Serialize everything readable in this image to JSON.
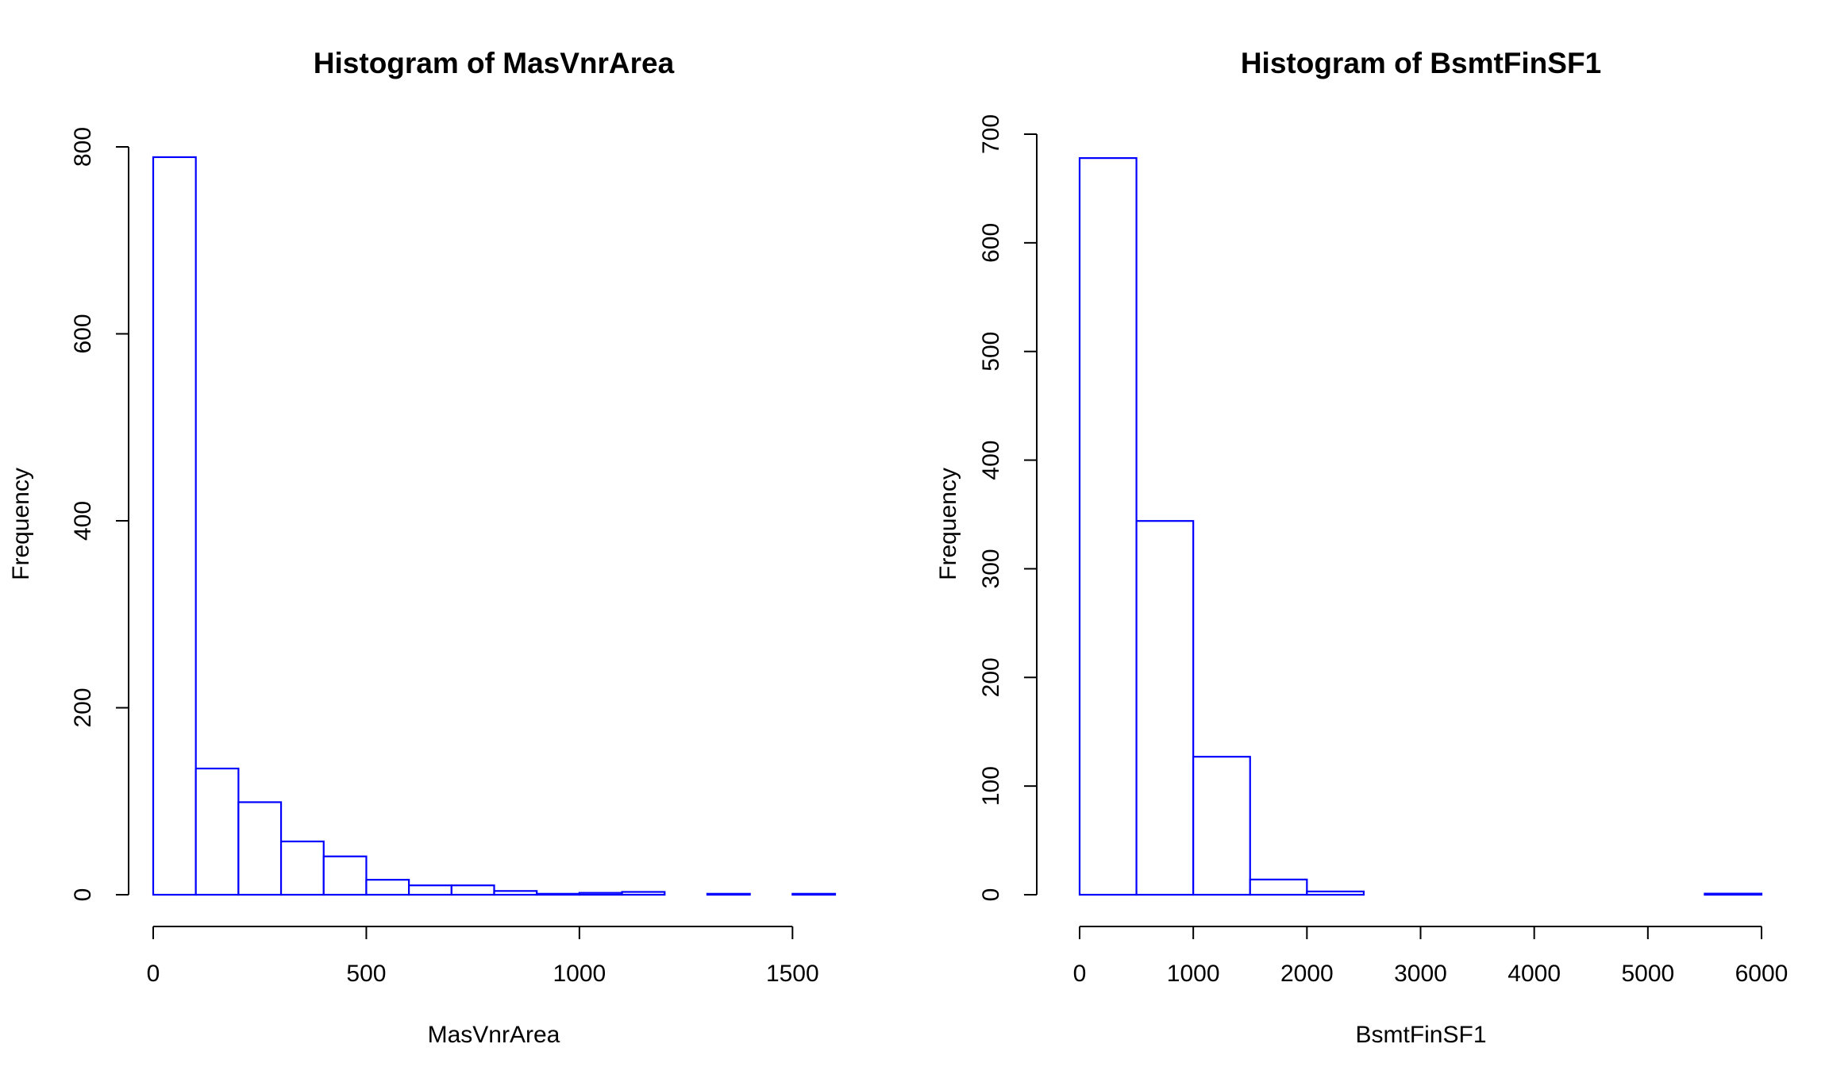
{
  "chart_data": [
    {
      "type": "bar",
      "title": "Histogram of  MasVnrArea",
      "xlabel": "MasVnrArea",
      "ylabel": "Frequency",
      "bar_color": "#0000ff",
      "xlim": [
        0,
        1600
      ],
      "ylim": [
        0,
        800
      ],
      "x_ticks": [
        0,
        500,
        1000,
        1500
      ],
      "y_ticks": [
        0,
        200,
        400,
        600,
        800
      ],
      "bin_edges": [
        0,
        100,
        200,
        300,
        400,
        500,
        600,
        700,
        800,
        900,
        1000,
        1100,
        1200,
        1300,
        1400,
        1500,
        1600
      ],
      "values": [
        789,
        135,
        99,
        57,
        41,
        16,
        10,
        10,
        4,
        1,
        2,
        3,
        0,
        1,
        0,
        1
      ]
    },
    {
      "type": "bar",
      "title": "Histogram of  BsmtFinSF1",
      "xlabel": "BsmtFinSF1",
      "ylabel": "Frequency",
      "bar_color": "#0000ff",
      "xlim": [
        0,
        6000
      ],
      "ylim": [
        0,
        700
      ],
      "x_ticks": [
        0,
        1000,
        2000,
        3000,
        4000,
        5000,
        6000
      ],
      "y_ticks": [
        0,
        100,
        200,
        300,
        400,
        500,
        600,
        700
      ],
      "bin_edges": [
        0,
        500,
        1000,
        1500,
        2000,
        2500,
        3000,
        3500,
        4000,
        4500,
        5000,
        5500,
        6000
      ],
      "values": [
        678,
        344,
        127,
        14,
        3,
        0,
        0,
        0,
        0,
        0,
        0,
        1
      ]
    }
  ]
}
